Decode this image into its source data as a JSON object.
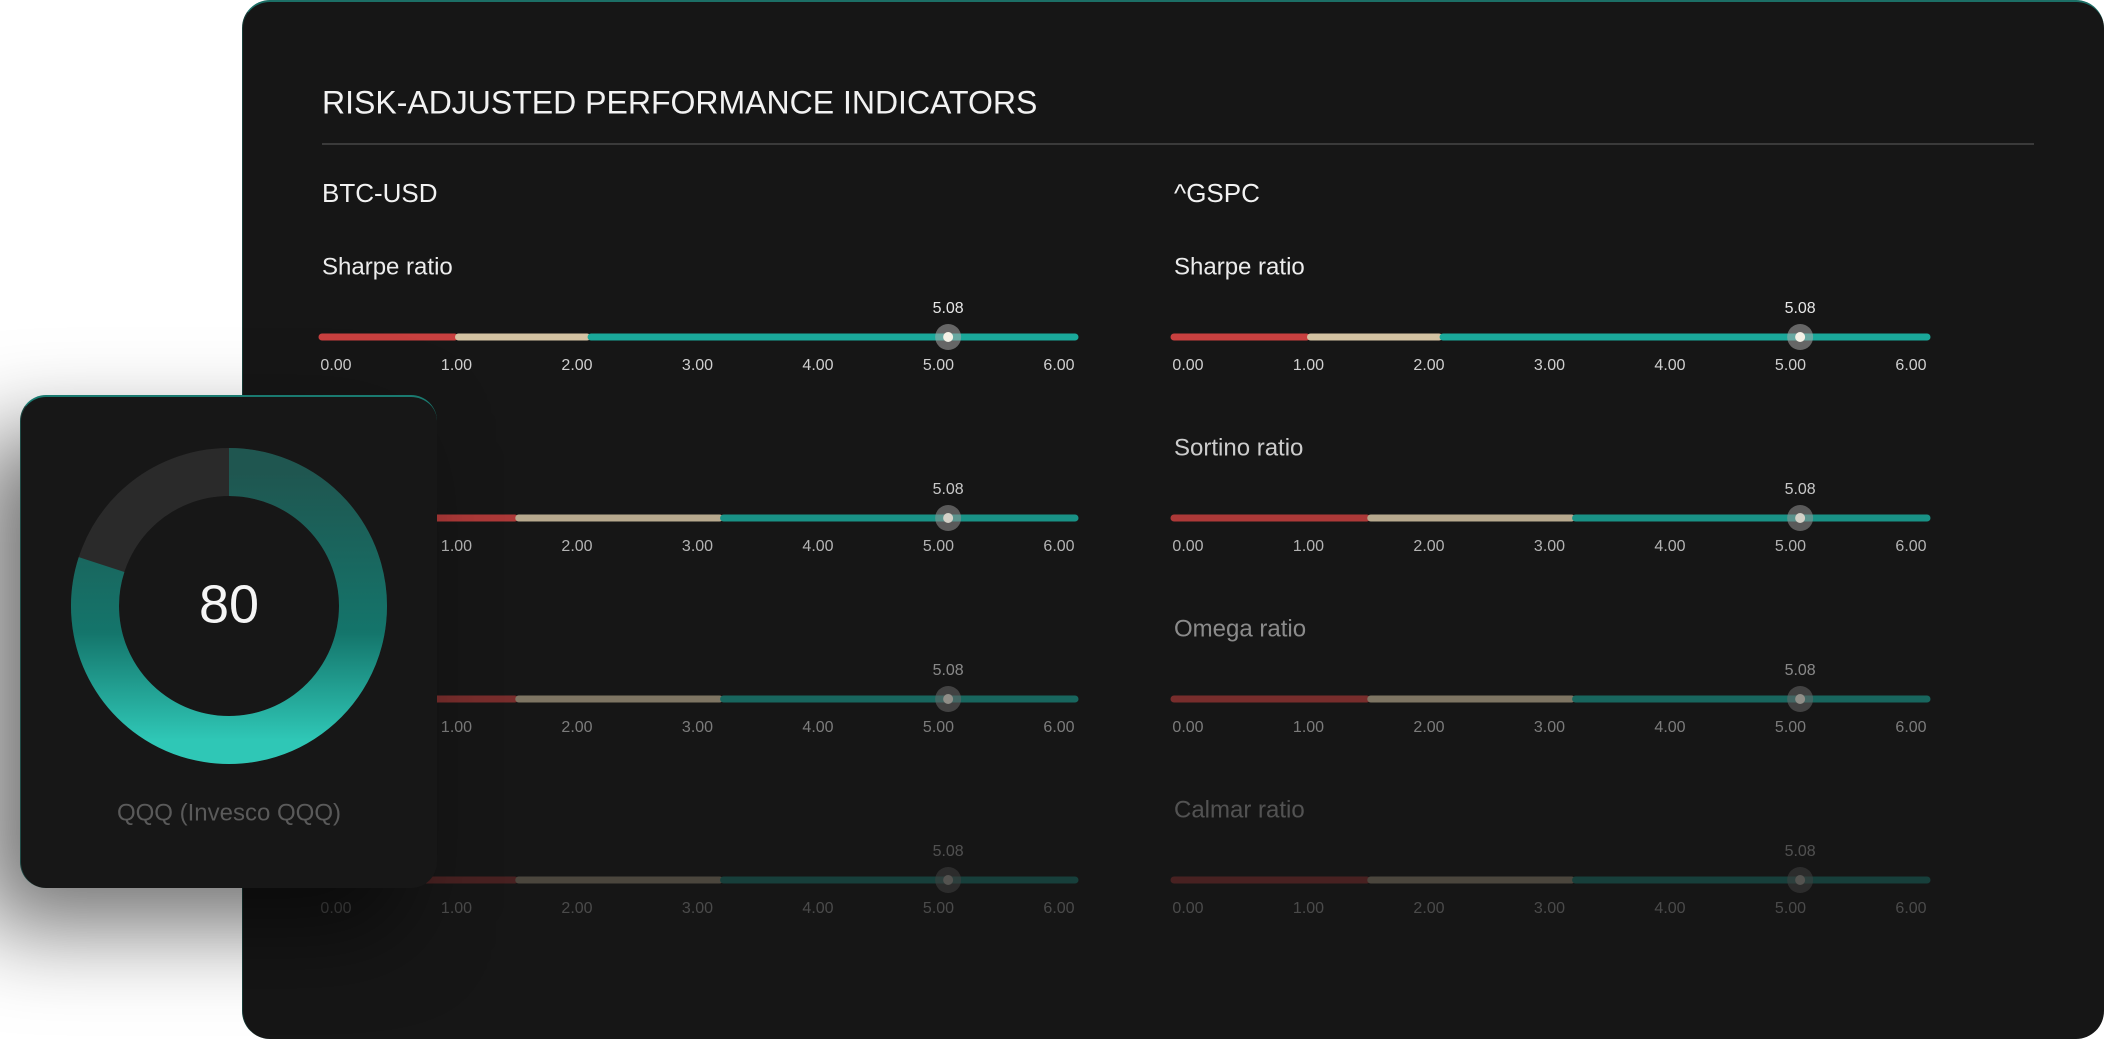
{
  "title": "RISK-ADJUSTED PERFORMANCE INDICATORS",
  "xlim": [
    0,
    6
  ],
  "xticks": [
    {
      "value": 0,
      "label": "0.00"
    },
    {
      "value": 1,
      "label": "1.00"
    },
    {
      "value": 2,
      "label": "2.00"
    },
    {
      "value": 3,
      "label": "3.00"
    },
    {
      "value": 4,
      "label": "4.00"
    },
    {
      "value": 5,
      "label": "5.00"
    },
    {
      "value": 6,
      "label": "6.00"
    }
  ],
  "colors": [
    "#c8403f",
    "#d4c3a3",
    "#1aa89a"
  ],
  "panels": [
    {
      "name": "BTC-USD",
      "indicators": [
        {
          "name": "Sharpe ratio",
          "value": 5.08,
          "thresholds": [
            1.0,
            2.1
          ]
        },
        {
          "name": null,
          "value": 5.08,
          "thresholds": [
            1.5,
            3.2
          ]
        },
        {
          "name": null,
          "value": 5.08,
          "thresholds": [
            1.5,
            3.2
          ]
        },
        {
          "name": null,
          "value": 5.08,
          "thresholds": [
            1.5,
            3.2
          ]
        }
      ]
    },
    {
      "name": "^GSPC",
      "indicators": [
        {
          "name": "Sharpe ratio",
          "value": 5.08,
          "thresholds": [
            1.0,
            2.1
          ]
        },
        {
          "name": "Sortino ratio",
          "value": 5.08,
          "thresholds": [
            1.5,
            3.2
          ]
        },
        {
          "name": "Omega ratio",
          "value": 5.08,
          "thresholds": [
            1.5,
            3.2
          ]
        },
        {
          "name": "Calmar ratio",
          "value": 5.08,
          "thresholds": [
            1.5,
            3.2
          ]
        }
      ]
    }
  ],
  "gauge": {
    "value": 80,
    "range": [
      0,
      100
    ],
    "label": "QQQ (Invesco QQQ)",
    "color": "#1aa89a"
  }
}
